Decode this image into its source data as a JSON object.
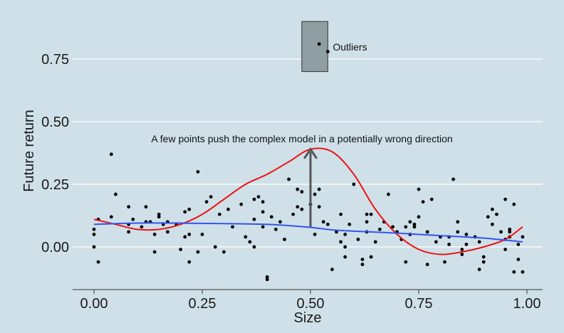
{
  "chart_data": {
    "type": "scatter",
    "xlabel": "Size",
    "ylabel": "Future return",
    "xlim": [
      -0.05,
      1.05
    ],
    "ylim": [
      -0.175,
      0.95
    ],
    "x_ticks": [
      0.0,
      0.25,
      0.5,
      0.75,
      1.0
    ],
    "x_tick_labels": [
      "0.00",
      "0.25",
      "0.50",
      "0.75",
      "1.00"
    ],
    "y_ticks": [
      0.0,
      0.25,
      0.5,
      0.75
    ],
    "y_tick_labels": [
      "0.00",
      "0.25",
      "0.50",
      "0.75"
    ],
    "grid": "horizontal",
    "colors": {
      "background": "#cfe0e8",
      "points": "#000000",
      "complex_model": "#ee1111",
      "simple_model": "#3355ee",
      "arrow": "#555555",
      "outlier_box": "#8f9ea3"
    },
    "points": [
      [
        0.0,
        0.05
      ],
      [
        0.0,
        0.07
      ],
      [
        0.0,
        0.0
      ],
      [
        0.01,
        0.11
      ],
      [
        0.01,
        -0.06
      ],
      [
        0.04,
        0.37
      ],
      [
        0.04,
        0.12
      ],
      [
        0.05,
        0.21
      ],
      [
        0.08,
        0.16
      ],
      [
        0.08,
        0.09
      ],
      [
        0.08,
        0.06
      ],
      [
        0.09,
        0.11
      ],
      [
        0.11,
        0.08
      ],
      [
        0.12,
        0.16
      ],
      [
        0.12,
        0.1
      ],
      [
        0.13,
        0.1
      ],
      [
        0.14,
        0.05
      ],
      [
        0.14,
        -0.02
      ],
      [
        0.15,
        0.12
      ],
      [
        0.15,
        0.13
      ],
      [
        0.16,
        0.09
      ],
      [
        0.17,
        0.1
      ],
      [
        0.17,
        0.06
      ],
      [
        0.19,
        0.09
      ],
      [
        0.2,
        -0.01
      ],
      [
        0.21,
        0.04
      ],
      [
        0.21,
        0.14
      ],
      [
        0.22,
        0.05
      ],
      [
        0.22,
        0.15
      ],
      [
        0.22,
        -0.06
      ],
      [
        0.24,
        0.3
      ],
      [
        0.24,
        -0.02
      ],
      [
        0.25,
        0.05
      ],
      [
        0.26,
        0.18
      ],
      [
        0.27,
        0.2
      ],
      [
        0.28,
        0.0
      ],
      [
        0.29,
        0.13
      ],
      [
        0.3,
        -0.02
      ],
      [
        0.31,
        0.15
      ],
      [
        0.32,
        0.08
      ],
      [
        0.34,
        0.17
      ],
      [
        0.35,
        0.04
      ],
      [
        0.36,
        0.02
      ],
      [
        0.37,
        0.11
      ],
      [
        0.37,
        0.0
      ],
      [
        0.37,
        0.19
      ],
      [
        0.38,
        0.2
      ],
      [
        0.39,
        0.14
      ],
      [
        0.39,
        0.08
      ],
      [
        0.39,
        0.18
      ],
      [
        0.4,
        -0.12
      ],
      [
        0.4,
        -0.13
      ],
      [
        0.41,
        0.12
      ],
      [
        0.42,
        0.07
      ],
      [
        0.43,
        0.1
      ],
      [
        0.44,
        0.03
      ],
      [
        0.45,
        0.27
      ],
      [
        0.46,
        0.13
      ],
      [
        0.47,
        0.16
      ],
      [
        0.47,
        0.23
      ],
      [
        0.48,
        0.15
      ],
      [
        0.48,
        0.22
      ],
      [
        0.5,
        0.17
      ],
      [
        0.51,
        0.05
      ],
      [
        0.51,
        0.21
      ],
      [
        0.52,
        0.23
      ],
      [
        0.52,
        0.16
      ],
      [
        0.53,
        0.1
      ],
      [
        0.54,
        0.09
      ],
      [
        0.55,
        -0.09
      ],
      [
        0.56,
        0.06
      ],
      [
        0.57,
        0.13
      ],
      [
        0.57,
        0.02
      ],
      [
        0.58,
        -0.04
      ],
      [
        0.58,
        0.0
      ],
      [
        0.58,
        0.05
      ],
      [
        0.59,
        0.09
      ],
      [
        0.6,
        0.25
      ],
      [
        0.61,
        0.03
      ],
      [
        0.62,
        -0.05
      ],
      [
        0.62,
        -0.07
      ],
      [
        0.63,
        0.13
      ],
      [
        0.63,
        0.1
      ],
      [
        0.63,
        0.06
      ],
      [
        0.64,
        0.13
      ],
      [
        0.64,
        -0.04
      ],
      [
        0.65,
        0.02
      ],
      [
        0.66,
        0.07
      ],
      [
        0.67,
        0.1
      ],
      [
        0.68,
        0.21
      ],
      [
        0.69,
        0.08
      ],
      [
        0.7,
        0.06
      ],
      [
        0.71,
        0.03
      ],
      [
        0.72,
        -0.06
      ],
      [
        0.72,
        0.08
      ],
      [
        0.73,
        0.05
      ],
      [
        0.73,
        0.1
      ],
      [
        0.74,
        0.08
      ],
      [
        0.74,
        0.09
      ],
      [
        0.75,
        0.23
      ],
      [
        0.75,
        0.12
      ],
      [
        0.76,
        0.18
      ],
      [
        0.77,
        0.06
      ],
      [
        0.77,
        -0.07
      ],
      [
        0.78,
        0.19
      ],
      [
        0.79,
        0.02
      ],
      [
        0.8,
        0.04
      ],
      [
        0.81,
        -0.06
      ],
      [
        0.82,
        0.01
      ],
      [
        0.82,
        0.04
      ],
      [
        0.83,
        0.27
      ],
      [
        0.84,
        0.06
      ],
      [
        0.84,
        0.1
      ],
      [
        0.85,
        -0.03
      ],
      [
        0.85,
        -0.01
      ],
      [
        0.86,
        0.01
      ],
      [
        0.86,
        0.05
      ],
      [
        0.88,
        0.04
      ],
      [
        0.89,
        0.02
      ],
      [
        0.89,
        -0.09
      ],
      [
        0.9,
        -0.04
      ],
      [
        0.9,
        -0.06
      ],
      [
        0.91,
        0.12
      ],
      [
        0.92,
        0.09
      ],
      [
        0.92,
        0.15
      ],
      [
        0.93,
        0.13
      ],
      [
        0.94,
        0.06
      ],
      [
        0.95,
        0.03
      ],
      [
        0.95,
        0.19
      ],
      [
        0.95,
        -0.01
      ],
      [
        0.96,
        0.07
      ],
      [
        0.96,
        0.04
      ],
      [
        0.96,
        0.06
      ],
      [
        0.97,
        0.17
      ],
      [
        0.97,
        -0.1
      ],
      [
        0.98,
        -0.05
      ],
      [
        0.98,
        0.01
      ],
      [
        0.99,
        0.04
      ],
      [
        0.99,
        -0.1
      ],
      [
        0.52,
        0.81
      ],
      [
        0.54,
        0.78
      ]
    ],
    "complex_model": {
      "x": [
        0.0,
        0.05,
        0.1,
        0.15,
        0.2,
        0.25,
        0.3,
        0.35,
        0.4,
        0.45,
        0.5,
        0.55,
        0.6,
        0.65,
        0.7,
        0.75,
        0.8,
        0.85,
        0.9,
        0.95,
        0.99
      ],
      "y": [
        0.11,
        0.09,
        0.07,
        0.07,
        0.09,
        0.13,
        0.19,
        0.25,
        0.29,
        0.34,
        0.39,
        0.38,
        0.29,
        0.15,
        0.05,
        -0.01,
        -0.03,
        -0.02,
        0.0,
        0.03,
        0.08
      ]
    },
    "simple_model": {
      "x": [
        0.0,
        0.1,
        0.2,
        0.3,
        0.4,
        0.45,
        0.5,
        0.55,
        0.6,
        0.7,
        0.8,
        0.9,
        0.99
      ],
      "y": [
        0.09,
        0.095,
        0.095,
        0.093,
        0.09,
        0.085,
        0.078,
        0.068,
        0.063,
        0.055,
        0.045,
        0.035,
        0.02
      ]
    },
    "arrow": {
      "x": 0.5,
      "y_start": 0.08,
      "y_end": 0.39
    },
    "outlier_box": {
      "x0": 0.48,
      "x1": 0.54,
      "y0": 0.7,
      "y1": 0.9
    },
    "annotations": {
      "arrow_label": "A few points push the complex model in a potentially wrong direction",
      "outlier_label": "Outliers"
    }
  }
}
